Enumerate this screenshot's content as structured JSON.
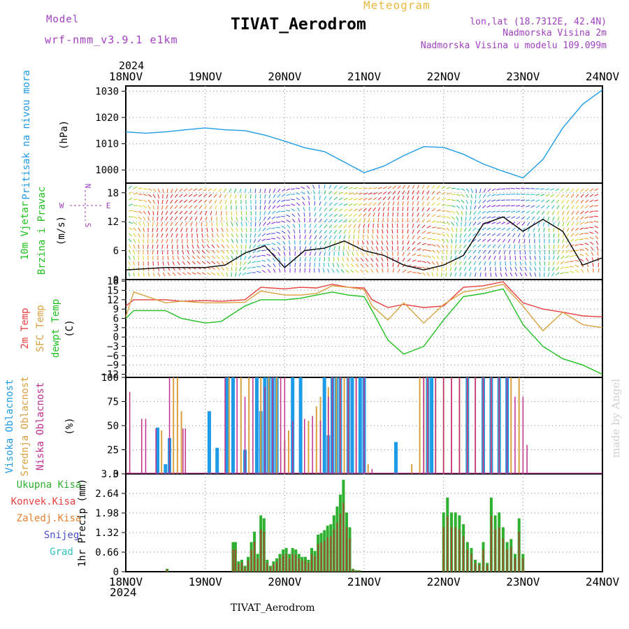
{
  "header": {
    "model_label": "Model",
    "model_name": "wrf-nmm_v3.9.1  e1km",
    "meteogram_label": "Meteogram",
    "station_title": "TIVAT_Aerodrom",
    "lonlat": "lon,lat (18.7312E, 42.4N)",
    "elevation": "Nadmorska Visina 2m",
    "model_elevation": "Nadmorska Visina u modelu 109.099m",
    "year_top": "2024",
    "year_bottom": "2024",
    "station_bottom": "TIVAT_Aerodrom",
    "credit": "made by Angel"
  },
  "colors": {
    "pressure": "#1e9be6",
    "temp2m": "#e84040",
    "sfc": "#d8a040",
    "dewpt": "#20c020",
    "high_cloud": "#1e9be6",
    "mid_cloud": "#d8a040",
    "low_cloud": "#c03090",
    "total_precip": "#30b030",
    "conv_precip": "#e84040",
    "frz": "#e88030",
    "snow": "#5050d0",
    "grad": "#30c0c0",
    "wind_label": "#20c020",
    "purple": "#a040c0"
  },
  "wind_compass": {
    "n": "N",
    "s": "S",
    "w": "W",
    "e": "E"
  },
  "chart_data": [
    {
      "type": "line",
      "id": "pressure",
      "ylabel": [
        "Pritisak na nivou mora",
        "(hPa)"
      ],
      "ylim": [
        995,
        1032
      ],
      "yticks": [
        1000,
        1010,
        1020,
        1030
      ],
      "x_ticks": [
        "18NOV",
        "19NOV",
        "20NOV",
        "21NOV",
        "22NOV",
        "23NOV",
        "24NOV"
      ],
      "series": [
        {
          "x": [
            0,
            0.25,
            0.5,
            0.75,
            1,
            1.25,
            1.5,
            1.75,
            2,
            2.25,
            2.5,
            2.75,
            3,
            3.25,
            3.5,
            3.75,
            4,
            4.25,
            4.5,
            4.75,
            5,
            5.25,
            5.5,
            5.75,
            6
          ],
          "y": [
            1014.5,
            1014,
            1014.5,
            1015.3,
            1016,
            1015.3,
            1015,
            1013.3,
            1011,
            1008.5,
            1007,
            1003,
            999,
            1001.5,
            1005.5,
            1008.9,
            1008.6,
            1006,
            1002.3,
            999.5,
            997,
            1004,
            1016,
            1025,
            1030.5
          ]
        }
      ]
    },
    {
      "type": "line",
      "id": "wind",
      "ylabel": [
        "10m Vjetar",
        "Brzina i Pravac",
        "(m/s)"
      ],
      "ylim": [
        0,
        20
      ],
      "yticks": [
        0,
        6,
        12,
        18
      ],
      "series": [
        {
          "x": [
            0,
            0.5,
            1,
            1.25,
            1.5,
            1.75,
            2,
            2.25,
            2.5,
            2.75,
            3,
            3.25,
            3.5,
            3.75,
            4,
            4.25,
            4.5,
            4.75,
            5,
            5.25,
            5.5,
            5.75,
            6
          ],
          "y": [
            2,
            2.5,
            2.5,
            3,
            5.5,
            7,
            2.5,
            6,
            6.5,
            8,
            6,
            5,
            3,
            2,
            3,
            5,
            11.5,
            13,
            10,
            12.5,
            10,
            3,
            4.5
          ]
        }
      ]
    },
    {
      "type": "line",
      "id": "temperature",
      "ylabel": [
        "2m Temp",
        "SFC Temp",
        "dewpt Temp",
        "(C)"
      ],
      "ylim": [
        -13,
        18.5
      ],
      "yticks": [
        18,
        15,
        12,
        9,
        6,
        3,
        0,
        -3,
        -6,
        -9,
        -12
      ],
      "series": [
        {
          "name": "2m Temp",
          "x": [
            0,
            0.1,
            0.5,
            0.7,
            1,
            1.2,
            1.5,
            1.7,
            2,
            2.2,
            2.4,
            2.6,
            2.8,
            3,
            3.1,
            3.3,
            3.5,
            3.75,
            4,
            4.25,
            4.5,
            4.75,
            5,
            5.25,
            5.5,
            5.75,
            6
          ],
          "y": [
            10,
            12,
            12,
            11.5,
            11.7,
            11.5,
            12,
            16,
            15.5,
            16,
            15.8,
            17,
            16,
            15.8,
            12,
            9.5,
            10.5,
            9.5,
            10,
            16,
            16.5,
            17.8,
            11,
            9,
            8,
            6.8,
            6.5
          ]
        },
        {
          "name": "SFC Temp",
          "x": [
            0,
            0.1,
            0.5,
            0.7,
            1,
            1.2,
            1.5,
            1.7,
            2,
            2.2,
            2.4,
            2.6,
            2.8,
            3,
            3.1,
            3.3,
            3.5,
            3.75,
            4,
            4.25,
            4.5,
            4.75,
            5,
            5.25,
            5.5,
            5.75,
            6
          ],
          "y": [
            6.5,
            14.5,
            11,
            11.5,
            11,
            11,
            11.2,
            14.8,
            13.5,
            13.5,
            14,
            16.5,
            16,
            15.3,
            10,
            5.5,
            11,
            4.5,
            10.5,
            14.5,
            15.5,
            17,
            10,
            2,
            8,
            4,
            3
          ]
        },
        {
          "name": "dewpt Temp",
          "x": [
            0,
            0.1,
            0.5,
            0.7,
            1,
            1.2,
            1.5,
            1.7,
            2,
            2.2,
            2.4,
            2.6,
            2.8,
            3,
            3.1,
            3.3,
            3.5,
            3.75,
            4,
            4.25,
            4.5,
            4.75,
            5,
            5.25,
            5.5,
            5.75,
            6
          ],
          "y": [
            6,
            8.5,
            8.5,
            6,
            4.5,
            5,
            10,
            12,
            12,
            12.5,
            13.5,
            14.5,
            13.5,
            13,
            8.5,
            -1,
            -5.5,
            -3,
            5.5,
            13,
            14,
            15.5,
            4,
            -3,
            -7,
            -9,
            -12
          ]
        }
      ]
    },
    {
      "type": "bar",
      "id": "cloud",
      "ylabel": [
        "Visoka Oblacnost",
        "Srednja Oblacnost",
        "Niska Oblacnost",
        "(%)"
      ],
      "ylim": [
        0,
        100
      ],
      "yticks": [
        0,
        25,
        50,
        75,
        100
      ],
      "series": [
        {
          "name": "Visoka Oblacnost",
          "x": [
            0.4,
            0.5,
            0.55,
            1.05,
            1.15,
            1.27,
            1.35,
            1.5,
            1.65,
            1.7,
            1.75,
            1.8,
            1.85,
            1.9,
            2.1,
            2.2,
            2.5,
            2.55,
            2.6,
            2.65,
            2.7,
            2.8,
            2.85,
            2.95,
            3.0,
            3.4,
            3.8,
            3.85,
            4.3,
            4.5,
            4.6,
            4.7,
            4.8
          ],
          "values": [
            48,
            10,
            37,
            65,
            27,
            100,
            100,
            25,
            100,
            65,
            100,
            100,
            100,
            100,
            100,
            100,
            100,
            40,
            100,
            100,
            100,
            100,
            100,
            100,
            100,
            33,
            100,
            100,
            100,
            100,
            100,
            100,
            100
          ]
        },
        {
          "name": "Srednja Oblacnost",
          "x": [
            0.45,
            0.6,
            0.65,
            0.7,
            1.3,
            1.45,
            1.55,
            1.7,
            1.8,
            1.9,
            2.0,
            2.05,
            2.3,
            2.4,
            2.45,
            2.55,
            2.65,
            2.7,
            2.75,
            2.8,
            2.9,
            3.05,
            3.6,
            3.7,
            3.75,
            3.8,
            3.9,
            4.0,
            4.1,
            4.2,
            4.3,
            4.4,
            4.5,
            4.6,
            4.7,
            4.85,
            4.95
          ],
          "values": [
            45,
            100,
            100,
            65,
            100,
            100,
            100,
            100,
            100,
            100,
            35,
            45,
            55,
            70,
            80,
            90,
            100,
            100,
            100,
            100,
            100,
            10,
            10,
            100,
            100,
            100,
            100,
            100,
            100,
            100,
            100,
            100,
            100,
            100,
            100,
            100,
            100
          ]
        },
        {
          "name": "Niska Oblacnost",
          "x": [
            0.05,
            0.2,
            0.25,
            0.38,
            0.55,
            0.72,
            0.75,
            1.25,
            1.4,
            1.5,
            1.6,
            1.75,
            1.85,
            1.95,
            2.0,
            2.1,
            2.25,
            2.35,
            2.45,
            2.55,
            2.6,
            2.7,
            2.8,
            2.9,
            3.0,
            3.1,
            3.75,
            3.8,
            3.9,
            4.0,
            4.1,
            4.2,
            4.3,
            4.4,
            4.5,
            4.6,
            4.7,
            4.8,
            4.9,
            5.0,
            5.05
          ],
          "values": [
            85,
            57,
            57,
            47,
            100,
            47,
            47,
            100,
            100,
            80,
            100,
            90,
            100,
            100,
            100,
            55,
            57,
            60,
            55,
            80,
            100,
            100,
            100,
            100,
            100,
            5,
            100,
            100,
            100,
            100,
            100,
            100,
            100,
            100,
            100,
            100,
            100,
            100,
            80,
            80,
            30
          ]
        }
      ]
    },
    {
      "type": "bar",
      "id": "precip",
      "ylabel": [
        "1hr Precip (mm)"
      ],
      "legend": [
        "Ukupna Kisa",
        "Konvek.Kisa",
        "Zaledj.Kisa",
        "Snijeg",
        "Grad"
      ],
      "ylim": [
        0,
        3.3
      ],
      "yticks": [
        0,
        0.66,
        1.32,
        1.98,
        2.64,
        3.3
      ],
      "x_ticks": [
        "18NOV",
        "19NOV",
        "20NOV",
        "21NOV",
        "22NOV",
        "23NOV",
        "24NOV"
      ],
      "series": [
        {
          "name": "Ukupna Kisa",
          "x": [
            0.52,
            1.35,
            1.38,
            1.42,
            1.46,
            1.5,
            1.54,
            1.58,
            1.62,
            1.66,
            1.7,
            1.74,
            1.78,
            1.82,
            1.86,
            1.9,
            1.94,
            1.98,
            2.02,
            2.06,
            2.1,
            2.14,
            2.18,
            2.22,
            2.26,
            2.3,
            2.34,
            2.38,
            2.42,
            2.46,
            2.5,
            2.54,
            2.58,
            2.62,
            2.66,
            2.7,
            2.74,
            2.78,
            2.82,
            2.86,
            2.9,
            2.94,
            4.0,
            4.05,
            4.1,
            4.15,
            4.2,
            4.25,
            4.3,
            4.35,
            4.4,
            4.45,
            4.5,
            4.55,
            4.6,
            4.65,
            4.7,
            4.75,
            4.8,
            4.85,
            4.9,
            4.95,
            5.0
          ],
          "values": [
            0.1,
            1.0,
            1.0,
            0.35,
            0.4,
            0.2,
            0.5,
            1.0,
            1.35,
            0.6,
            1.9,
            1.8,
            0.4,
            0.2,
            0.35,
            0.45,
            0.6,
            0.75,
            0.8,
            0.6,
            0.8,
            0.75,
            0.6,
            0.5,
            0.5,
            0.4,
            0.8,
            0.7,
            1.25,
            1.3,
            1.4,
            1.55,
            1.6,
            1.9,
            2.2,
            2.6,
            3.1,
            2.0,
            1.5,
            0.1,
            0.05,
            0.05,
            2.0,
            2.5,
            2.0,
            2.0,
            1.9,
            1.6,
            1.0,
            0.8,
            0.4,
            0.3,
            1.0,
            0.3,
            2.5,
            1.9,
            2.0,
            1.5,
            1.0,
            1.1,
            0.6,
            1.8,
            0.6
          ]
        }
      ]
    }
  ]
}
